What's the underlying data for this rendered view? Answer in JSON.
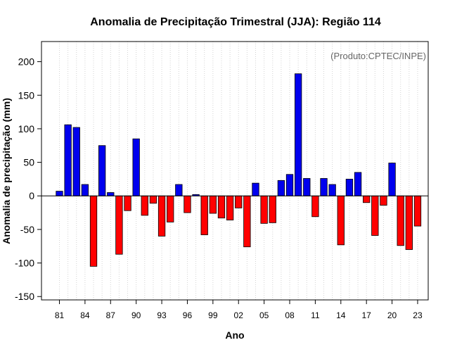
{
  "chart_data": {
    "type": "bar",
    "title": "Anomalia de Precipitação Trimestral (JJA): Região 114",
    "xlabel": "Ano",
    "ylabel": "Anomalia de precipitação (mm)",
    "source_note": "(Produto:CPTEC/INPE)",
    "ylim": [
      -155,
      230
    ],
    "yticks": [
      -150,
      -100,
      -50,
      0,
      50,
      100,
      150,
      200
    ],
    "x_first_year": 1981,
    "xtick_labels": [
      {
        "year": 1981,
        "label": "81"
      },
      {
        "year": 1984,
        "label": "84"
      },
      {
        "year": 1987,
        "label": "87"
      },
      {
        "year": 1990,
        "label": "90"
      },
      {
        "year": 1993,
        "label": "93"
      },
      {
        "year": 1996,
        "label": "96"
      },
      {
        "year": 1999,
        "label": "99"
      },
      {
        "year": 2002,
        "label": "02"
      },
      {
        "year": 2005,
        "label": "05"
      },
      {
        "year": 2008,
        "label": "08"
      },
      {
        "year": 2011,
        "label": "11"
      },
      {
        "year": 2014,
        "label": "14"
      },
      {
        "year": 2017,
        "label": "17"
      },
      {
        "year": 2020,
        "label": "20"
      },
      {
        "year": 2023,
        "label": "23"
      }
    ],
    "years": [
      1981,
      1982,
      1983,
      1984,
      1985,
      1986,
      1987,
      1988,
      1989,
      1990,
      1991,
      1992,
      1993,
      1994,
      1995,
      1996,
      1997,
      1998,
      1999,
      2000,
      2001,
      2002,
      2003,
      2004,
      2005,
      2006,
      2007,
      2008,
      2009,
      2010,
      2011,
      2012,
      2013,
      2014,
      2015,
      2016,
      2017,
      2018,
      2019,
      2020,
      2021,
      2022,
      2023
    ],
    "values": [
      7,
      106,
      102,
      17,
      -105,
      75,
      5,
      -87,
      -22,
      85,
      -29,
      -11,
      -60,
      -39,
      17,
      -25,
      2,
      -58,
      -26,
      -33,
      -36,
      -18,
      -76,
      19,
      -41,
      -40,
      23,
      32,
      182,
      26,
      -31,
      26,
      17,
      -73,
      25,
      35,
      -10,
      -59,
      -14,
      49,
      -74,
      -80,
      -45
    ],
    "colors": {
      "positive": "#0000ee",
      "negative": "#ff0000",
      "edge": "#000000",
      "grid": "#d3d3d3"
    }
  }
}
